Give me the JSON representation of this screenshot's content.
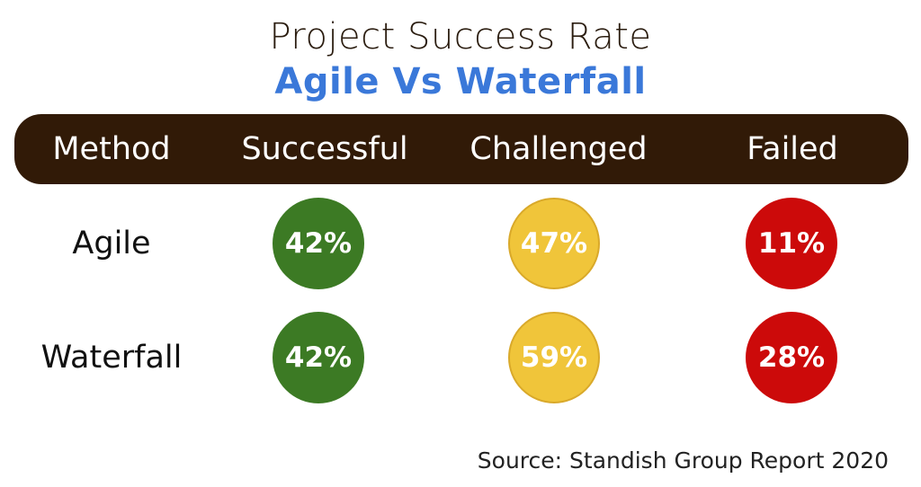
{
  "title": "Project Success Rate",
  "subtitle": "Agile Vs Waterfall",
  "header": {
    "method": "Method",
    "successful": "Successful",
    "challenged": "Challenged",
    "failed": "Failed"
  },
  "colors": {
    "header_bg": "#311a07",
    "subtitle": "#3a78d9",
    "successful": "#3c7a24",
    "challenged": "#f0c53a",
    "failed": "#cc0a0a"
  },
  "source": "Source: Standish Group Report 2020",
  "chart_data": {
    "type": "table",
    "columns": [
      "Method",
      "Successful",
      "Challenged",
      "Failed"
    ],
    "rows": [
      {
        "method": "Agile",
        "successful": "42%",
        "challenged": "47%",
        "failed": "11%"
      },
      {
        "method": "Waterfall",
        "successful": "42%",
        "challenged": "59%",
        "failed": "28%"
      }
    ]
  }
}
